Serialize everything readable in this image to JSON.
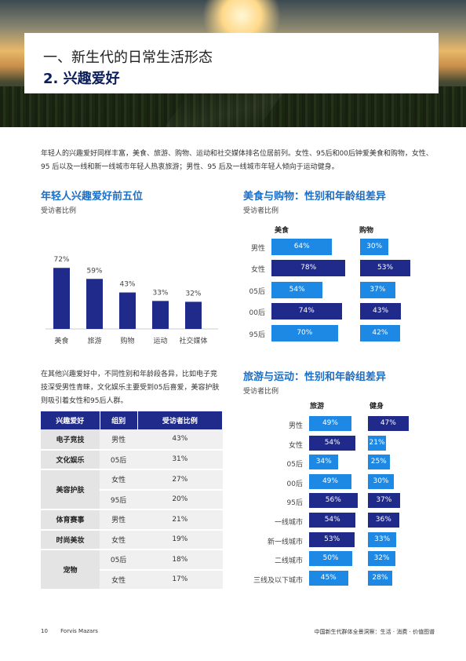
{
  "header": {
    "title_line1": "一、新生代的日常生活形态",
    "title_line2": "2. 兴趣爱好"
  },
  "intro": "年轻人的兴趣爱好同样丰富，美食、旅游、购物、运动和社交媒体排名位居前列。女性、95后和00后钟爱美食和购物，女性、95 后以及一线和新一线城市年轻人热衷旅游；男性、95 后及一线城市年轻人倾向于运动健身。",
  "top5": {
    "title": "年轻人兴趣爱好前五位",
    "subtitle": "受访者比例",
    "color": "#1f2a8a",
    "chart_data": {
      "type": "bar",
      "categories": [
        "美食",
        "旅游",
        "购物",
        "运动",
        "社交媒体"
      ],
      "values": [
        72,
        59,
        43,
        33,
        32
      ],
      "labels": [
        "72%",
        "59%",
        "43%",
        "33%",
        "32%"
      ],
      "ylim": [
        0,
        100
      ]
    }
  },
  "food_shopping": {
    "title": "美食与购物：性别和年龄组差异",
    "subtitle": "受访者比例",
    "col1": "美食",
    "col2": "购物",
    "chart_data": {
      "type": "bar",
      "categories": [
        "男性",
        "女性",
        "05后",
        "00后",
        "95后"
      ],
      "series": [
        {
          "name": "美食",
          "values": [
            64,
            78,
            54,
            74,
            70
          ],
          "labels": [
            "64%",
            "78%",
            "54%",
            "74%",
            "70%"
          ],
          "colors": [
            "#1e88e5",
            "#1f2a8a",
            "#1e88e5",
            "#1f2a8a",
            "#1e88e5"
          ]
        },
        {
          "name": "购物",
          "values": [
            30,
            53,
            37,
            43,
            42
          ],
          "labels": [
            "30%",
            "53%",
            "37%",
            "43%",
            "42%"
          ],
          "colors": [
            "#1e88e5",
            "#1f2a8a",
            "#1e88e5",
            "#1f2a8a",
            "#1e88e5"
          ]
        }
      ]
    }
  },
  "mid_text": "在其他兴趣爱好中，不同性别和年龄段各异，比如电子竞技深受男性青睐，文化娱乐主要受到05后喜爱，美容护肤则吸引着女性和95后人群。",
  "interest_table": {
    "headers": [
      "兴趣爱好",
      "组别",
      "受访者比例"
    ],
    "rows": [
      {
        "hobby": "电子竞技",
        "group": "男性",
        "pct": "43%"
      },
      {
        "hobby": "文化娱乐",
        "group": "05后",
        "pct": "31%"
      },
      {
        "hobby": "美容护肤",
        "group": "女性",
        "pct": "27%"
      },
      {
        "hobby": "",
        "group": "95后",
        "pct": "20%"
      },
      {
        "hobby": "体育赛事",
        "group": "男性",
        "pct": "21%"
      },
      {
        "hobby": "时尚美妆",
        "group": "女性",
        "pct": "19%"
      },
      {
        "hobby": "宠物",
        "group": "05后",
        "pct": "18%"
      },
      {
        "hobby": "",
        "group": "女性",
        "pct": "17%"
      }
    ]
  },
  "travel_sport": {
    "title": "旅游与运动：性别和年龄组差异",
    "subtitle": "受访者比例",
    "col1": "旅游",
    "col2": "健身",
    "chart_data": {
      "type": "bar",
      "categories": [
        "男性",
        "女性",
        "05后",
        "00后",
        "95后",
        "一线城市",
        "新一线城市",
        "二线城市",
        "三线及以下城市"
      ],
      "series": [
        {
          "name": "旅游",
          "values": [
            49,
            54,
            34,
            49,
            56,
            54,
            53,
            50,
            45
          ],
          "labels": [
            "49%",
            "54%",
            "34%",
            "49%",
            "56%",
            "54%",
            "53%",
            "50%",
            "45%"
          ],
          "colors": [
            "#1e88e5",
            "#1f2a8a",
            "#1e88e5",
            "#1e88e5",
            "#1f2a8a",
            "#1f2a8a",
            "#1f2a8a",
            "#1e88e5",
            "#1e88e5"
          ]
        },
        {
          "name": "健身",
          "values": [
            47,
            21,
            25,
            30,
            37,
            36,
            33,
            32,
            28
          ],
          "labels": [
            "47%",
            "21%",
            "25%",
            "30%",
            "37%",
            "36%",
            "33%",
            "32%",
            "28%"
          ],
          "colors": [
            "#1f2a8a",
            "#1e88e5",
            "#1e88e5",
            "#1e88e5",
            "#1f2a8a",
            "#1f2a8a",
            "#1e88e5",
            "#1e88e5",
            "#1e88e5"
          ]
        }
      ]
    }
  },
  "footer": {
    "page_number": "10",
    "brand": "Forvis Mazars",
    "report_title": "中国新生代群体全景洞察：生活 · 消费 · 价值图谱"
  }
}
